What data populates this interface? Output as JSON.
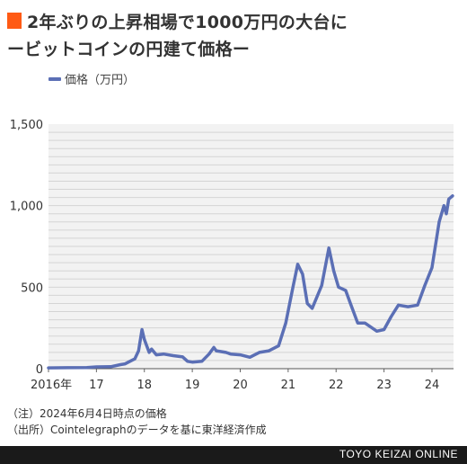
{
  "title": {
    "line1": "2年ぶりの上昇相場で1000万円の大台に",
    "line2": "ービットコインの円建て価格ー"
  },
  "chart_data": {
    "type": "line",
    "x_unit": "year",
    "series": [
      {
        "name": "価格（万円）",
        "color": "#5b6fb5",
        "points": [
          [
            2016.0,
            5
          ],
          [
            2016.4,
            6
          ],
          [
            2016.8,
            7
          ],
          [
            2017.0,
            11
          ],
          [
            2017.3,
            12
          ],
          [
            2017.5,
            25
          ],
          [
            2017.6,
            30
          ],
          [
            2017.7,
            45
          ],
          [
            2017.8,
            60
          ],
          [
            2017.88,
            110
          ],
          [
            2017.95,
            240
          ],
          [
            2018.0,
            180
          ],
          [
            2018.1,
            100
          ],
          [
            2018.15,
            120
          ],
          [
            2018.25,
            85
          ],
          [
            2018.4,
            90
          ],
          [
            2018.6,
            80
          ],
          [
            2018.8,
            72
          ],
          [
            2018.9,
            45
          ],
          [
            2019.0,
            40
          ],
          [
            2019.2,
            45
          ],
          [
            2019.35,
            90
          ],
          [
            2019.45,
            130
          ],
          [
            2019.5,
            110
          ],
          [
            2019.7,
            100
          ],
          [
            2019.8,
            90
          ],
          [
            2020.0,
            85
          ],
          [
            2020.2,
            70
          ],
          [
            2020.4,
            100
          ],
          [
            2020.6,
            110
          ],
          [
            2020.8,
            140
          ],
          [
            2020.95,
            280
          ],
          [
            2021.1,
            500
          ],
          [
            2021.2,
            640
          ],
          [
            2021.3,
            580
          ],
          [
            2021.4,
            400
          ],
          [
            2021.5,
            370
          ],
          [
            2021.7,
            510
          ],
          [
            2021.85,
            740
          ],
          [
            2021.95,
            600
          ],
          [
            2022.05,
            500
          ],
          [
            2022.2,
            480
          ],
          [
            2022.3,
            400
          ],
          [
            2022.45,
            280
          ],
          [
            2022.6,
            280
          ],
          [
            2022.85,
            230
          ],
          [
            2023.0,
            240
          ],
          [
            2023.15,
            320
          ],
          [
            2023.3,
            390
          ],
          [
            2023.5,
            380
          ],
          [
            2023.7,
            390
          ],
          [
            2023.85,
            510
          ],
          [
            2024.0,
            620
          ],
          [
            2024.15,
            900
          ],
          [
            2024.25,
            1000
          ],
          [
            2024.3,
            950
          ],
          [
            2024.35,
            1040
          ],
          [
            2024.43,
            1060
          ]
        ]
      }
    ],
    "x_ticks": [
      {
        "value": 2016,
        "label": "2016年"
      },
      {
        "value": 2017,
        "label": "17"
      },
      {
        "value": 2018,
        "label": "18"
      },
      {
        "value": 2019,
        "label": "19"
      },
      {
        "value": 2020,
        "label": "20"
      },
      {
        "value": 2021,
        "label": "21"
      },
      {
        "value": 2022,
        "label": "22"
      },
      {
        "value": 2023,
        "label": "23"
      },
      {
        "value": 2024,
        "label": "24"
      }
    ],
    "y_ticks": [
      {
        "value": 0,
        "label": "0"
      },
      {
        "value": 500,
        "label": "500"
      },
      {
        "value": 1000,
        "label": "1,000"
      },
      {
        "value": 1500,
        "label": "1,500"
      }
    ],
    "xlim": [
      2016,
      2024.45
    ],
    "ylim": [
      0,
      1500
    ],
    "grid": true,
    "legend_position": "top-left"
  },
  "notes": {
    "note": "（注）2024年6月4日時点の価格",
    "source": "（出所）Cointelegraphのデータを基に東洋経済作成"
  },
  "footer": {
    "brand": "TOYO KEIZAI ONLINE"
  }
}
